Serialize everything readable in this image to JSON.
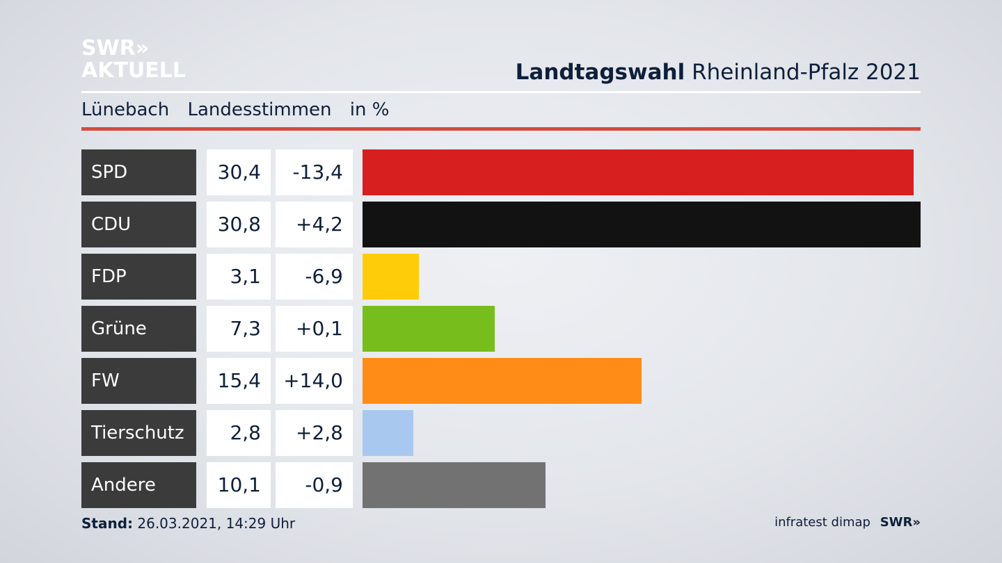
{
  "logo": {
    "line1": "SWR»",
    "line2": "AKTUELL"
  },
  "header": {
    "title_bold": "Landtagswahl",
    "title_rest": "Rheinland-Pfalz 2021"
  },
  "subheader": {
    "place": "Lünebach",
    "type": "Landesstimmen",
    "unit": "in %"
  },
  "footer": {
    "stand_label": "Stand:",
    "stand_value": "26.03.2021, 14:29 Uhr",
    "source": "infratest dimap",
    "source_logo": "SWR»"
  },
  "chart_data": {
    "type": "bar",
    "orientation": "horizontal",
    "categories": [
      "SPD",
      "CDU",
      "FDP",
      "Grüne",
      "FW",
      "Tierschutz",
      "Andere"
    ],
    "values": [
      30.4,
      30.8,
      3.1,
      7.3,
      15.4,
      2.8,
      10.1
    ],
    "values_text": [
      "30,4",
      "30,8",
      "3,1",
      "7,3",
      "15,4",
      "2,8",
      "10,1"
    ],
    "diffs_text": [
      "-13,4",
      "+4,2",
      "-6,9",
      "+0,1",
      "+14,0",
      "+2,8",
      "-0,9"
    ],
    "colors": [
      "#d71f1f",
      "#121212",
      "#ffcc09",
      "#77be1d",
      "#fe8c17",
      "#a9c8f0",
      "#727272"
    ],
    "xlim": [
      0,
      30.8
    ]
  }
}
